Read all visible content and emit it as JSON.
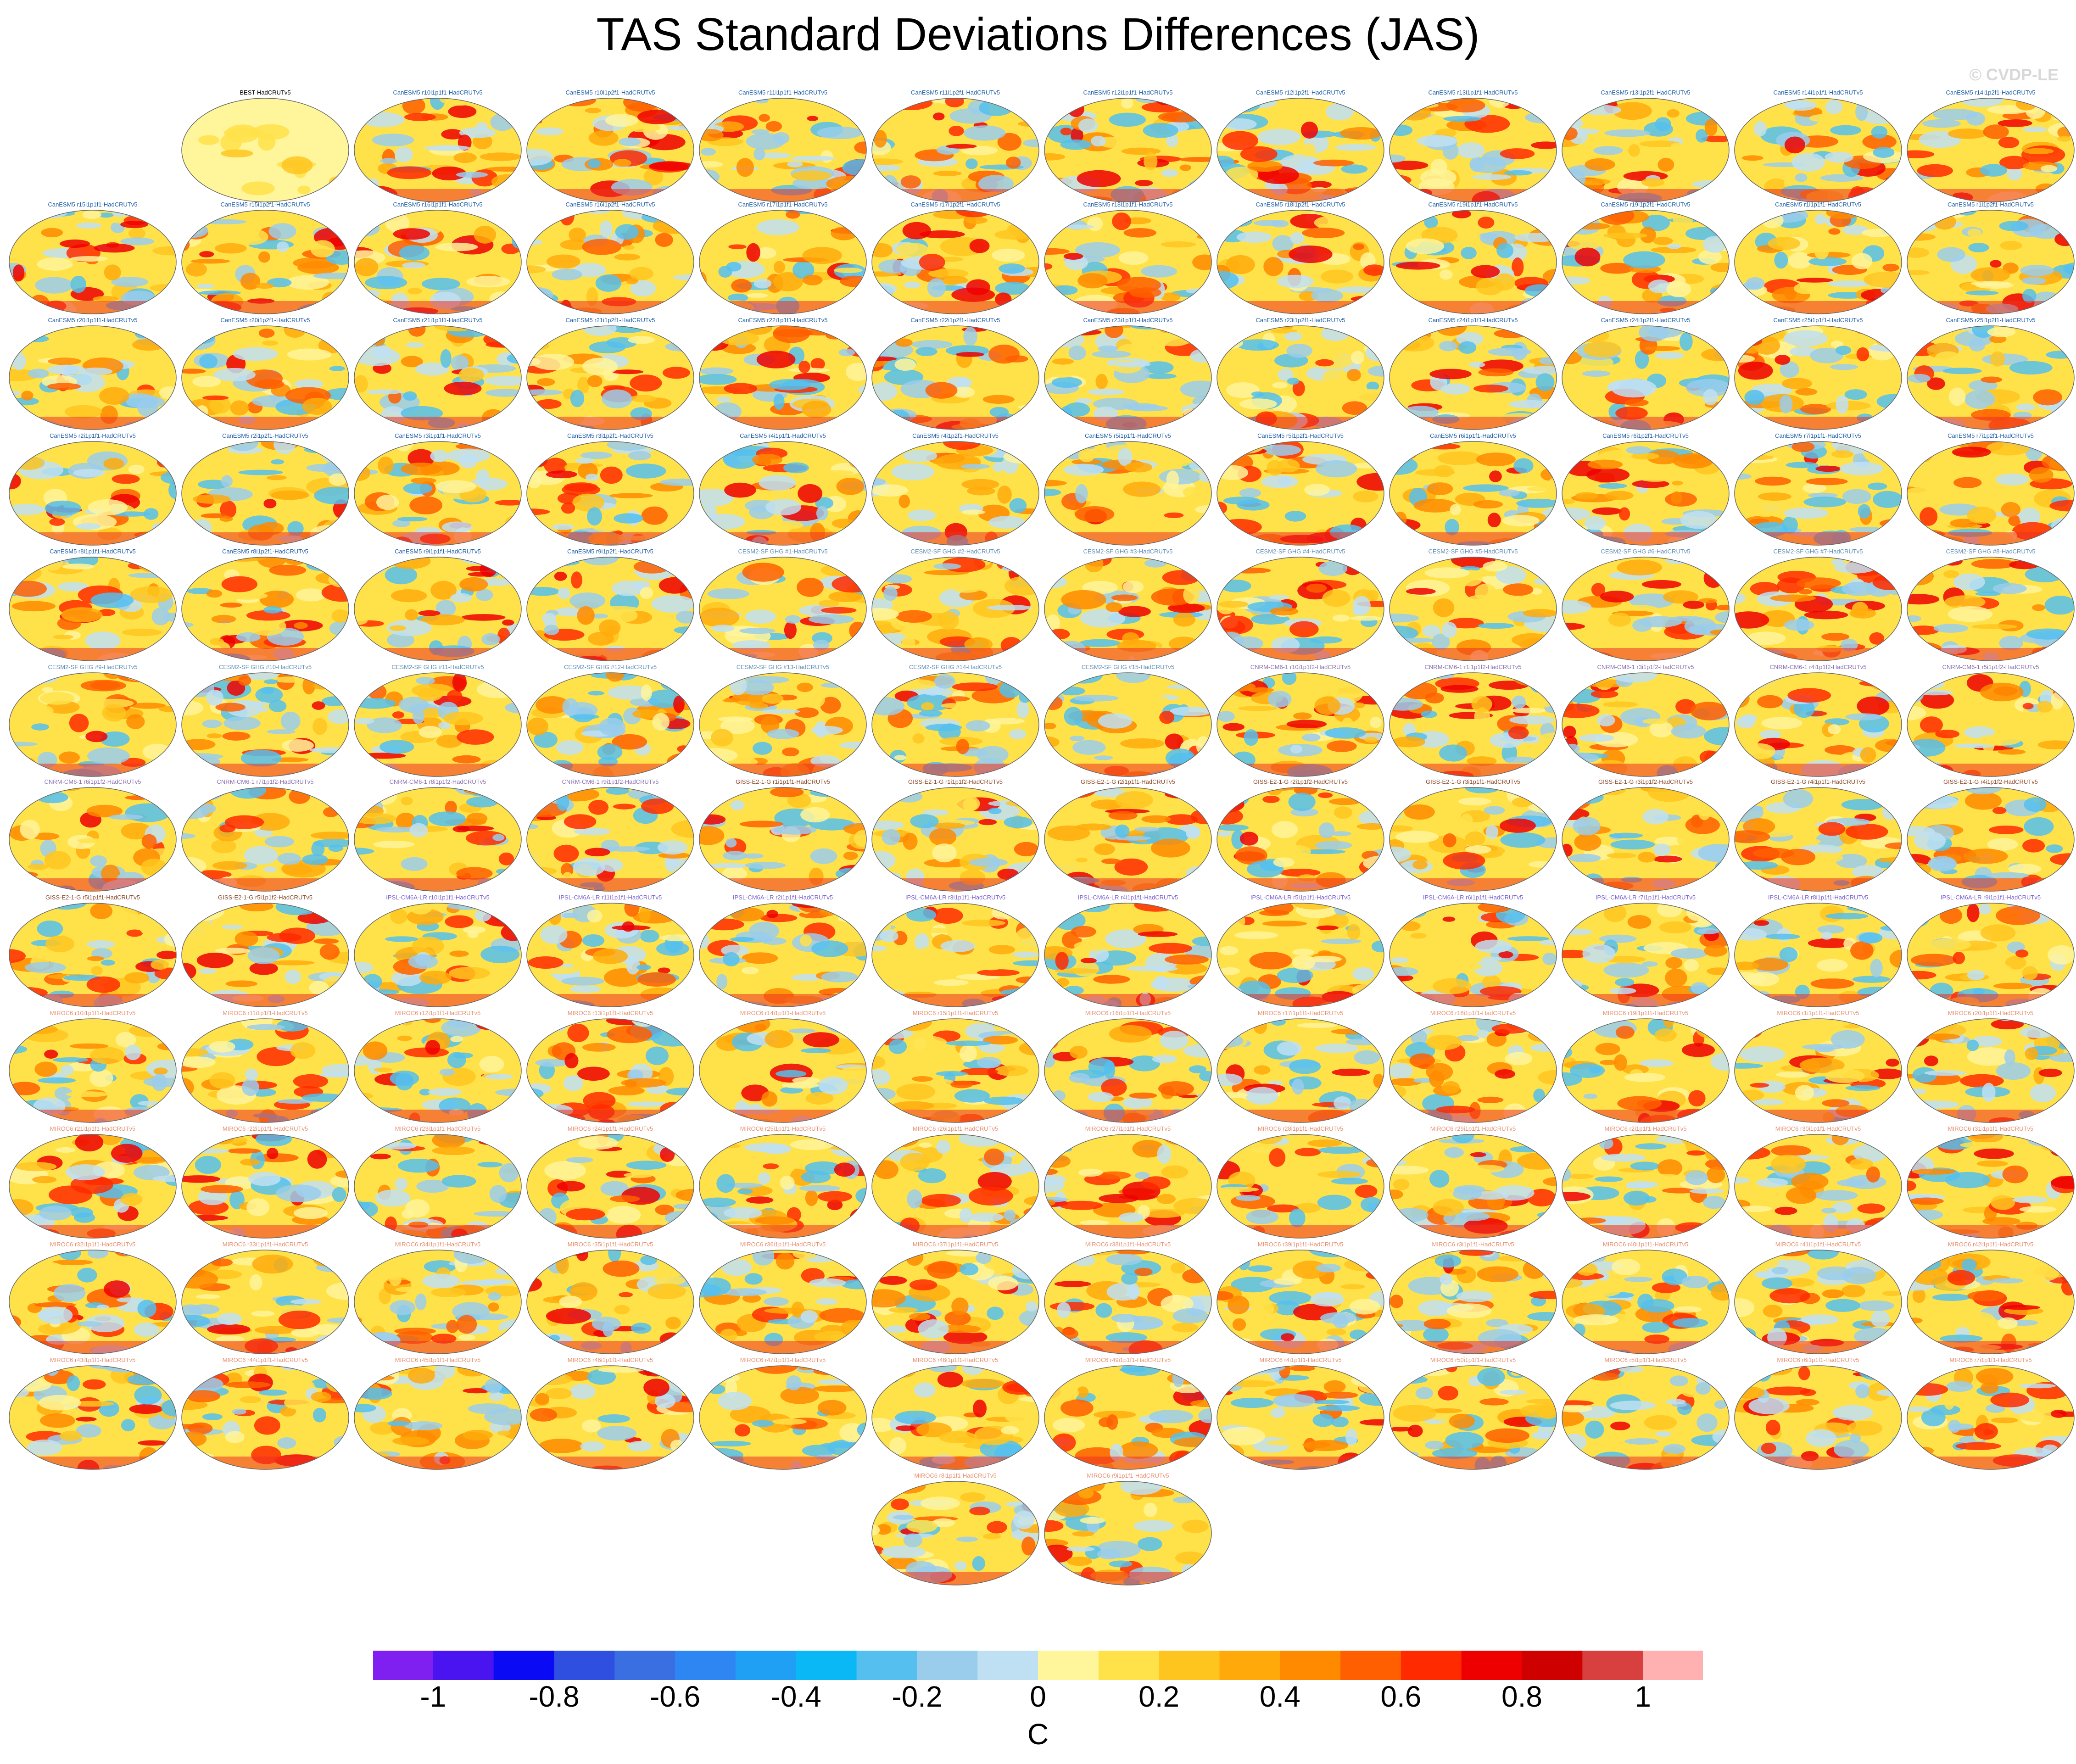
{
  "title": "TAS Standard Deviations Differences (JAS)",
  "watermark": "© CVDP-LE",
  "chart_data": {
    "type": "heatmap",
    "description_type": "grid of global map panels",
    "panels": [
      {
        "title": "BEST-HadCRUTv5",
        "group": "obs"
      },
      {
        "title": "CanESM5 r10i1p1f1-HadCRUTv5",
        "group": "canesm"
      },
      {
        "title": "CanESM5 r10i1p2f1-HadCRUTv5",
        "group": "canesm"
      },
      {
        "title": "CanESM5 r11i1p1f1-HadCRUTv5",
        "group": "canesm"
      },
      {
        "title": "CanESM5 r11i1p2f1-HadCRUTv5",
        "group": "canesm"
      },
      {
        "title": "CanESM5 r12i1p1f1-HadCRUTv5",
        "group": "canesm"
      },
      {
        "title": "CanESM5 r12i1p2f1-HadCRUTv5",
        "group": "canesm"
      },
      {
        "title": "CanESM5 r13i1p1f1-HadCRUTv5",
        "group": "canesm"
      },
      {
        "title": "CanESM5 r13i1p2f1-HadCRUTv5",
        "group": "canesm"
      },
      {
        "title": "CanESM5 r14i1p1f1-HadCRUTv5",
        "group": "canesm"
      },
      {
        "title": "CanESM5 r14i1p2f1-HadCRUTv5",
        "group": "canesm"
      },
      {
        "title": "CanESM5 r15i1p1f1-HadCRUTv5",
        "group": "canesm"
      },
      {
        "title": "CanESM5 r15i1p2f1-HadCRUTv5",
        "group": "canesm"
      },
      {
        "title": "CanESM5 r16i1p1f1-HadCRUTv5",
        "group": "canesm"
      },
      {
        "title": "CanESM5 r16i1p2f1-HadCRUTv5",
        "group": "canesm"
      },
      {
        "title": "CanESM5 r17i1p1f1-HadCRUTv5",
        "group": "canesm"
      },
      {
        "title": "CanESM5 r17i1p2f1-HadCRUTv5",
        "group": "canesm"
      },
      {
        "title": "CanESM5 r18i1p1f1-HadCRUTv5",
        "group": "canesm"
      },
      {
        "title": "CanESM5 r18i1p2f1-HadCRUTv5",
        "group": "canesm"
      },
      {
        "title": "CanESM5 r19i1p1f1-HadCRUTv5",
        "group": "canesm"
      },
      {
        "title": "CanESM5 r19i1p2f1-HadCRUTv5",
        "group": "canesm"
      },
      {
        "title": "CanESM5 r1i1p1f1-HadCRUTv5",
        "group": "canesm"
      },
      {
        "title": "CanESM5 r1i1p2f1-HadCRUTv5",
        "group": "canesm"
      },
      {
        "title": "CanESM5 r20i1p1f1-HadCRUTv5",
        "group": "canesm"
      },
      {
        "title": "CanESM5 r20i1p2f1-HadCRUTv5",
        "group": "canesm"
      },
      {
        "title": "CanESM5 r21i1p1f1-HadCRUTv5",
        "group": "canesm"
      },
      {
        "title": "CanESM5 r21i1p2f1-HadCRUTv5",
        "group": "canesm"
      },
      {
        "title": "CanESM5 r22i1p1f1-HadCRUTv5",
        "group": "canesm"
      },
      {
        "title": "CanESM5 r22i1p2f1-HadCRUTv5",
        "group": "canesm"
      },
      {
        "title": "CanESM5 r23i1p1f1-HadCRUTv5",
        "group": "canesm"
      },
      {
        "title": "CanESM5 r23i1p2f1-HadCRUTv5",
        "group": "canesm"
      },
      {
        "title": "CanESM5 r24i1p1f1-HadCRUTv5",
        "group": "canesm"
      },
      {
        "title": "CanESM5 r24i1p2f1-HadCRUTv5",
        "group": "canesm"
      },
      {
        "title": "CanESM5 r25i1p1f1-HadCRUTv5",
        "group": "canesm"
      },
      {
        "title": "CanESM5 r25i1p2f1-HadCRUTv5",
        "group": "canesm"
      },
      {
        "title": "CanESM5 r2i1p1f1-HadCRUTv5",
        "group": "canesm"
      },
      {
        "title": "CanESM5 r2i1p2f1-HadCRUTv5",
        "group": "canesm"
      },
      {
        "title": "CanESM5 r3i1p1f1-HadCRUTv5",
        "group": "canesm"
      },
      {
        "title": "CanESM5 r3i1p2f1-HadCRUTv5",
        "group": "canesm"
      },
      {
        "title": "CanESM5 r4i1p1f1-HadCRUTv5",
        "group": "canesm"
      },
      {
        "title": "CanESM5 r4i1p2f1-HadCRUTv5",
        "group": "canesm"
      },
      {
        "title": "CanESM5 r5i1p1f1-HadCRUTv5",
        "group": "canesm"
      },
      {
        "title": "CanESM5 r5i1p2f1-HadCRUTv5",
        "group": "canesm"
      },
      {
        "title": "CanESM5 r6i1p1f1-HadCRUTv5",
        "group": "canesm"
      },
      {
        "title": "CanESM5 r6i1p2f1-HadCRUTv5",
        "group": "canesm"
      },
      {
        "title": "CanESM5 r7i1p1f1-HadCRUTv5",
        "group": "canesm"
      },
      {
        "title": "CanESM5 r7i1p2f1-HadCRUTv5",
        "group": "canesm"
      },
      {
        "title": "CanESM5 r8i1p1f1-HadCRUTv5",
        "group": "canesm"
      },
      {
        "title": "CanESM5 r8i1p2f1-HadCRUTv5",
        "group": "canesm"
      },
      {
        "title": "CanESM5 r9i1p1f1-HadCRUTv5",
        "group": "canesm"
      },
      {
        "title": "CanESM5 r9i1p2f1-HadCRUTv5",
        "group": "canesm"
      },
      {
        "title": "CESM2-SF GHG #1-HadCRUTv5",
        "group": "cesm"
      },
      {
        "title": "CESM2-SF GHG #2-HadCRUTv5",
        "group": "cesm"
      },
      {
        "title": "CESM2-SF GHG #3-HadCRUTv5",
        "group": "cesm"
      },
      {
        "title": "CESM2-SF GHG #4-HadCRUTv5",
        "group": "cesm"
      },
      {
        "title": "CESM2-SF GHG #5-HadCRUTv5",
        "group": "cesm"
      },
      {
        "title": "CESM2-SF GHG #6-HadCRUTv5",
        "group": "cesm"
      },
      {
        "title": "CESM2-SF GHG #7-HadCRUTv5",
        "group": "cesm"
      },
      {
        "title": "CESM2-SF GHG #8-HadCRUTv5",
        "group": "cesm"
      },
      {
        "title": "CESM2-SF GHG #9-HadCRUTv5",
        "group": "cesm"
      },
      {
        "title": "CESM2-SF GHG #10-HadCRUTv5",
        "group": "cesm"
      },
      {
        "title": "CESM2-SF GHG #11-HadCRUTv5",
        "group": "cesm"
      },
      {
        "title": "CESM2-SF GHG #12-HadCRUTv5",
        "group": "cesm"
      },
      {
        "title": "CESM2-SF GHG #13-HadCRUTv5",
        "group": "cesm"
      },
      {
        "title": "CESM2-SF GHG #14-HadCRUTv5",
        "group": "cesm"
      },
      {
        "title": "CESM2-SF GHG #15-HadCRUTv5",
        "group": "cesm"
      },
      {
        "title": "CNRM-CM6-1 r10i1p1f2-HadCRUTv5",
        "group": "cnrm"
      },
      {
        "title": "CNRM-CM6-1 r1i1p1f2-HadCRUTv5",
        "group": "cnrm"
      },
      {
        "title": "CNRM-CM6-1 r3i1p1f2-HadCRUTv5",
        "group": "cnrm"
      },
      {
        "title": "CNRM-CM6-1 r4i1p1f2-HadCRUTv5",
        "group": "cnrm"
      },
      {
        "title": "CNRM-CM6-1 r5i1p1f2-HadCRUTv5",
        "group": "cnrm"
      },
      {
        "title": "CNRM-CM6-1 r6i1p1f2-HadCRUTv5",
        "group": "cnrm"
      },
      {
        "title": "CNRM-CM6-1 r7i1p1f2-HadCRUTv5",
        "group": "cnrm"
      },
      {
        "title": "CNRM-CM6-1 r8i1p1f2-HadCRUTv5",
        "group": "cnrm"
      },
      {
        "title": "CNRM-CM6-1 r9i1p1f2-HadCRUTv5",
        "group": "cnrm"
      },
      {
        "title": "GISS-E2-1-G r1i1p1f1-HadCRUTv5",
        "group": "giss"
      },
      {
        "title": "GISS-E2-1-G r1i1p1f2-HadCRUTv5",
        "group": "giss"
      },
      {
        "title": "GISS-E2-1-G r2i1p1f1-HadCRUTv5",
        "group": "giss"
      },
      {
        "title": "GISS-E2-1-G r2i1p1f2-HadCRUTv5",
        "group": "giss"
      },
      {
        "title": "GISS-E2-1-G r3i1p1f1-HadCRUTv5",
        "group": "giss"
      },
      {
        "title": "GISS-E2-1-G r3i1p1f2-HadCRUTv5",
        "group": "giss"
      },
      {
        "title": "GISS-E2-1-G r4i1p1f1-HadCRUTv5",
        "group": "giss"
      },
      {
        "title": "GISS-E2-1-G r4i1p1f2-HadCRUTv5",
        "group": "giss"
      },
      {
        "title": "GISS-E2-1-G r5i1p1f1-HadCRUTv5",
        "group": "giss"
      },
      {
        "title": "GISS-E2-1-G r5i1p1f2-HadCRUTv5",
        "group": "giss"
      },
      {
        "title": "IPSL-CM6A-LR r10i1p1f1-HadCRUTv5",
        "group": "ipsl"
      },
      {
        "title": "IPSL-CM6A-LR r11i1p1f1-HadCRUTv5",
        "group": "ipsl"
      },
      {
        "title": "IPSL-CM6A-LR r2i1p1f1-HadCRUTv5",
        "group": "ipsl"
      },
      {
        "title": "IPSL-CM6A-LR r3i1p1f1-HadCRUTv5",
        "group": "ipsl"
      },
      {
        "title": "IPSL-CM6A-LR r4i1p1f1-HadCRUTv5",
        "group": "ipsl"
      },
      {
        "title": "IPSL-CM6A-LR r5i1p1f1-HadCRUTv5",
        "group": "ipsl"
      },
      {
        "title": "IPSL-CM6A-LR r6i1p1f1-HadCRUTv5",
        "group": "ipsl"
      },
      {
        "title": "IPSL-CM6A-LR r7i1p1f1-HadCRUTv5",
        "group": "ipsl"
      },
      {
        "title": "IPSL-CM6A-LR r8i1p1f1-HadCRUTv5",
        "group": "ipsl"
      },
      {
        "title": "IPSL-CM6A-LR r9i1p1f1-HadCRUTv5",
        "group": "ipsl"
      },
      {
        "title": "MIROC6 r10i1p1f1-HadCRUTv5",
        "group": "miroc"
      },
      {
        "title": "MIROC6 r11i1p1f1-HadCRUTv5",
        "group": "miroc"
      },
      {
        "title": "MIROC6 r12i1p1f1-HadCRUTv5",
        "group": "miroc"
      },
      {
        "title": "MIROC6 r13i1p1f1-HadCRUTv5",
        "group": "miroc"
      },
      {
        "title": "MIROC6 r14i1p1f1-HadCRUTv5",
        "group": "miroc"
      },
      {
        "title": "MIROC6 r15i1p1f1-HadCRUTv5",
        "group": "miroc"
      },
      {
        "title": "MIROC6 r16i1p1f1-HadCRUTv5",
        "group": "miroc"
      },
      {
        "title": "MIROC6 r17i1p1f1-HadCRUTv5",
        "group": "miroc"
      },
      {
        "title": "MIROC6 r18i1p1f1-HadCRUTv5",
        "group": "miroc"
      },
      {
        "title": "MIROC6 r19i1p1f1-HadCRUTv5",
        "group": "miroc"
      },
      {
        "title": "MIROC6 r1i1p1f1-HadCRUTv5",
        "group": "miroc"
      },
      {
        "title": "MIROC6 r20i1p1f1-HadCRUTv5",
        "group": "miroc"
      },
      {
        "title": "MIROC6 r21i1p1f1-HadCRUTv5",
        "group": "miroc"
      },
      {
        "title": "MIROC6 r22i1p1f1-HadCRUTv5",
        "group": "miroc"
      },
      {
        "title": "MIROC6 r23i1p1f1-HadCRUTv5",
        "group": "miroc"
      },
      {
        "title": "MIROC6 r24i1p1f1-HadCRUTv5",
        "group": "miroc"
      },
      {
        "title": "MIROC6 r25i1p1f1-HadCRUTv5",
        "group": "miroc"
      },
      {
        "title": "MIROC6 r26i1p1f1-HadCRUTv5",
        "group": "miroc"
      },
      {
        "title": "MIROC6 r27i1p1f1-HadCRUTv5",
        "group": "miroc"
      },
      {
        "title": "MIROC6 r28i1p1f1-HadCRUTv5",
        "group": "miroc"
      },
      {
        "title": "MIROC6 r29i1p1f1-HadCRUTv5",
        "group": "miroc"
      },
      {
        "title": "MIROC6 r2i1p1f1-HadCRUTv5",
        "group": "miroc"
      },
      {
        "title": "MIROC6 r30i1p1f1-HadCRUTv5",
        "group": "miroc"
      },
      {
        "title": "MIROC6 r31i1p1f1-HadCRUTv5",
        "group": "miroc"
      },
      {
        "title": "MIROC6 r32i1p1f1-HadCRUTv5",
        "group": "miroc"
      },
      {
        "title": "MIROC6 r33i1p1f1-HadCRUTv5",
        "group": "miroc"
      },
      {
        "title": "MIROC6 r34i1p1f1-HadCRUTv5",
        "group": "miroc"
      },
      {
        "title": "MIROC6 r35i1p1f1-HadCRUTv5",
        "group": "miroc"
      },
      {
        "title": "MIROC6 r36i1p1f1-HadCRUTv5",
        "group": "miroc"
      },
      {
        "title": "MIROC6 r37i1p1f1-HadCRUTv5",
        "group": "miroc"
      },
      {
        "title": "MIROC6 r38i1p1f1-HadCRUTv5",
        "group": "miroc"
      },
      {
        "title": "MIROC6 r39i1p1f1-HadCRUTv5",
        "group": "miroc"
      },
      {
        "title": "MIROC6 r3i1p1f1-HadCRUTv5",
        "group": "miroc"
      },
      {
        "title": "MIROC6 r40i1p1f1-HadCRUTv5",
        "group": "miroc"
      },
      {
        "title": "MIROC6 r41i1p1f1-HadCRUTv5",
        "group": "miroc"
      },
      {
        "title": "MIROC6 r42i1p1f1-HadCRUTv5",
        "group": "miroc"
      },
      {
        "title": "MIROC6 r43i1p1f1-HadCRUTv5",
        "group": "miroc"
      },
      {
        "title": "MIROC6 r44i1p1f1-HadCRUTv5",
        "group": "miroc"
      },
      {
        "title": "MIROC6 r45i1p1f1-HadCRUTv5",
        "group": "miroc"
      },
      {
        "title": "MIROC6 r46i1p1f1-HadCRUTv5",
        "group": "miroc"
      },
      {
        "title": "MIROC6 r47i1p1f1-HadCRUTv5",
        "group": "miroc"
      },
      {
        "title": "MIROC6 r48i1p1f1-HadCRUTv5",
        "group": "miroc"
      },
      {
        "title": "MIROC6 r49i1p1f1-HadCRUTv5",
        "group": "miroc"
      },
      {
        "title": "MIROC6 r4i1p1f1-HadCRUTv5",
        "group": "miroc"
      },
      {
        "title": "MIROC6 r50i1p1f1-HadCRUTv5",
        "group": "miroc"
      },
      {
        "title": "MIROC6 r5i1p1f1-HadCRUTv5",
        "group": "miroc"
      },
      {
        "title": "MIROC6 r6i1p1f1-HadCRUTv5",
        "group": "miroc"
      },
      {
        "title": "MIROC6 r7i1p1f1-HadCRUTv5",
        "group": "miroc"
      },
      {
        "title": "MIROC6 r8i1p1f1-HadCRUTv5",
        "group": "miroc"
      },
      {
        "title": "MIROC6 r9i1p1f1-HadCRUTv5",
        "group": "miroc"
      }
    ],
    "group_title_colors": {
      "obs": "#000000",
      "canesm": "#1f5fa8",
      "cesm": "#5f8fb8",
      "cnrm": "#8a6fb0",
      "giss": "#8a4a2a",
      "ipsl": "#7a5fd0",
      "miroc": "#e89070"
    },
    "colorbar": {
      "colors": [
        "#7f1ff0",
        "#4a14f0",
        "#0a0af5",
        "#2e4fe0",
        "#3a6fe2",
        "#2e86f2",
        "#1fa0f5",
        "#0ab8f5",
        "#55c0ef",
        "#9acdec",
        "#bfe0f3",
        "#fff59a",
        "#ffe24a",
        "#ffc51f",
        "#ffaa0a",
        "#ff8a00",
        "#ff5f00",
        "#ff2a00",
        "#ef0000",
        "#cf0000",
        "#d84040",
        "#ffb0b0"
      ],
      "ticks": [
        "-1",
        "-0.8",
        "-0.6",
        "-0.4",
        "-0.2",
        "0",
        "0.2",
        "0.4",
        "0.6",
        "0.8",
        "1"
      ],
      "tick_values": [
        -1,
        -0.8,
        -0.6,
        -0.4,
        -0.2,
        0,
        0.2,
        0.4,
        0.6,
        0.8,
        1
      ],
      "range": [
        -1.1,
        1.1
      ],
      "units": "C"
    }
  }
}
